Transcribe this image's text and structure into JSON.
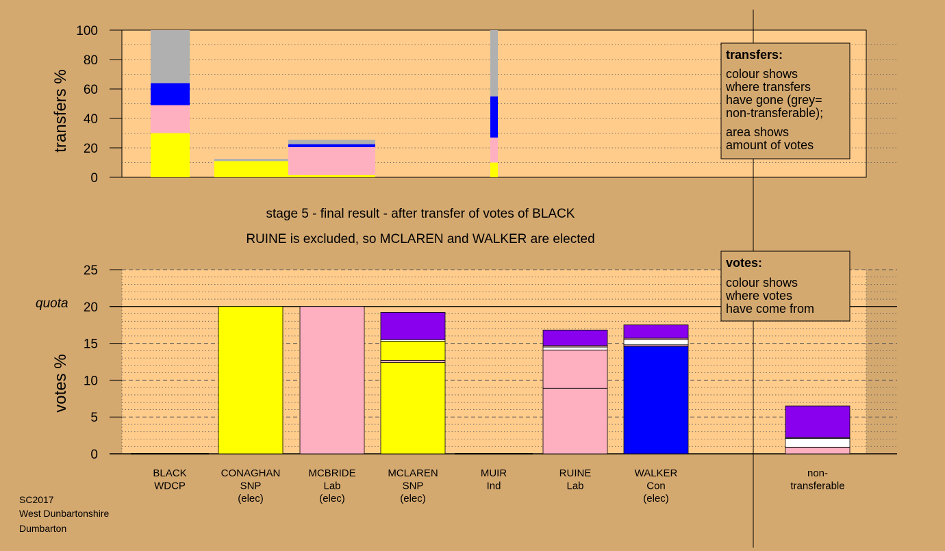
{
  "colors": {
    "background": "#d4a970",
    "plot": "#ffcc8c",
    "legend_box": "#d4a970",
    "SNP": "#ffff00",
    "Lab": "#ffb0c0",
    "Con": "#0000ff",
    "Ind": "#ffffff",
    "WDCP": "#8800ee",
    "nontransferable": "#b0b0b0"
  },
  "titles": {
    "stage": "stage 5 - final result - after transfer of votes of BLACK",
    "result": "RUINE is excluded, so MCLAREN and WALKER are elected"
  },
  "footer": [
    "SC2017",
    "West Dunbartonshire",
    "Dumbarton"
  ],
  "legend_transfers": {
    "title": "transfers:",
    "lines": [
      "colour shows",
      "where transfers",
      "have gone (grey=",
      "non-transferable);",
      "area shows",
      "amount of votes"
    ]
  },
  "legend_votes": {
    "title": "votes:",
    "lines": [
      "colour shows",
      "where votes",
      "have come from"
    ]
  },
  "quota_label": "quota",
  "chart_data": [
    {
      "type": "bar",
      "stacked": true,
      "title": "",
      "ylabel": "transfers %",
      "ylim": [
        0,
        100
      ],
      "yticks": [
        0,
        20,
        40,
        60,
        80,
        100
      ],
      "grid": "dotted horizontal",
      "legend_position": "top-right",
      "bars": [
        {
          "source": "BLACK",
          "share_of_width": 1.0,
          "segments": [
            {
              "party": "SNP",
              "value": 30
            },
            {
              "party": "Lab",
              "value": 19
            },
            {
              "party": "Con",
              "value": 15
            },
            {
              "party": "nontransferable",
              "value": 36
            }
          ]
        },
        {
          "source": "CONAGHAN",
          "share_of_width": 0.6,
          "segments": [
            {
              "party": "SNP",
              "value": 11
            },
            {
              "party": "nontransferable",
              "value": 1.5
            }
          ]
        },
        {
          "source": "MCBRIDE",
          "share_of_width": 0.6,
          "segments": [
            {
              "party": "SNP",
              "value": 1.5
            },
            {
              "party": "Lab",
              "value": 19
            },
            {
              "party": "Con",
              "value": 2
            },
            {
              "party": "nontransferable",
              "value": 3
            }
          ]
        },
        {
          "source": "MUIR",
          "share_of_width": 0.1,
          "segments": [
            {
              "party": "SNP",
              "value": 10
            },
            {
              "party": "Lab",
              "value": 17
            },
            {
              "party": "Con",
              "value": 28
            },
            {
              "party": "nontransferable",
              "value": 45
            }
          ]
        }
      ]
    },
    {
      "type": "bar",
      "stacked": true,
      "title": "",
      "ylabel": "votes %",
      "ylim": [
        0,
        25
      ],
      "yticks": [
        0,
        5,
        10,
        15,
        20,
        25
      ],
      "quota": 20,
      "grid": "dashed horizontal",
      "legend_position": "top-right",
      "categories": [
        {
          "name": "BLACK",
          "party": "WDCP",
          "status": ""
        },
        {
          "name": "CONAGHAN",
          "party": "SNP",
          "status": "(elec)"
        },
        {
          "name": "MCBRIDE",
          "party": "Lab",
          "status": "(elec)"
        },
        {
          "name": "MCLAREN",
          "party": "SNP",
          "status": "(elec)"
        },
        {
          "name": "MUIR",
          "party": "Ind",
          "status": ""
        },
        {
          "name": "RUINE",
          "party": "Lab",
          "status": ""
        },
        {
          "name": "WALKER",
          "party": "Con",
          "status": "(elec)"
        }
      ],
      "nontransferable_label": [
        "non-",
        "transferable"
      ],
      "bars": [
        {
          "segments": []
        },
        {
          "segments": [
            {
              "party": "SNP",
              "value": 20
            }
          ]
        },
        {
          "segments": [
            {
              "party": "Lab",
              "value": 20
            }
          ]
        },
        {
          "segments": [
            {
              "party": "SNP",
              "value": 12.4
            },
            {
              "party": "Lab",
              "value": 0.3
            },
            {
              "party": "SNP",
              "value": 2.6
            },
            {
              "party": "Ind",
              "value": 0.2
            },
            {
              "party": "WDCP",
              "value": 3.7
            }
          ]
        },
        {
          "segments": []
        },
        {
          "segments": [
            {
              "party": "Lab",
              "value": 8.9
            },
            {
              "party": "Lab",
              "value": 5.2
            },
            {
              "party": "Ind",
              "value": 0.4
            },
            {
              "party": "Lab",
              "value": 0.2
            },
            {
              "party": "WDCP",
              "value": 2.1
            }
          ]
        },
        {
          "segments": [
            {
              "party": "Con",
              "value": 14.6
            },
            {
              "party": "Lab",
              "value": 0.2
            },
            {
              "party": "Ind",
              "value": 0.7
            },
            {
              "party": "Lab",
              "value": 0.2
            },
            {
              "party": "WDCP",
              "value": 1.8
            }
          ]
        },
        {
          "segments": [
            {
              "party": "Lab",
              "value": 0.9
            },
            {
              "party": "Ind",
              "value": 1.2
            },
            {
              "party": "Ind",
              "value": 0.1
            },
            {
              "party": "WDCP",
              "value": 4.3
            }
          ]
        }
      ]
    }
  ]
}
